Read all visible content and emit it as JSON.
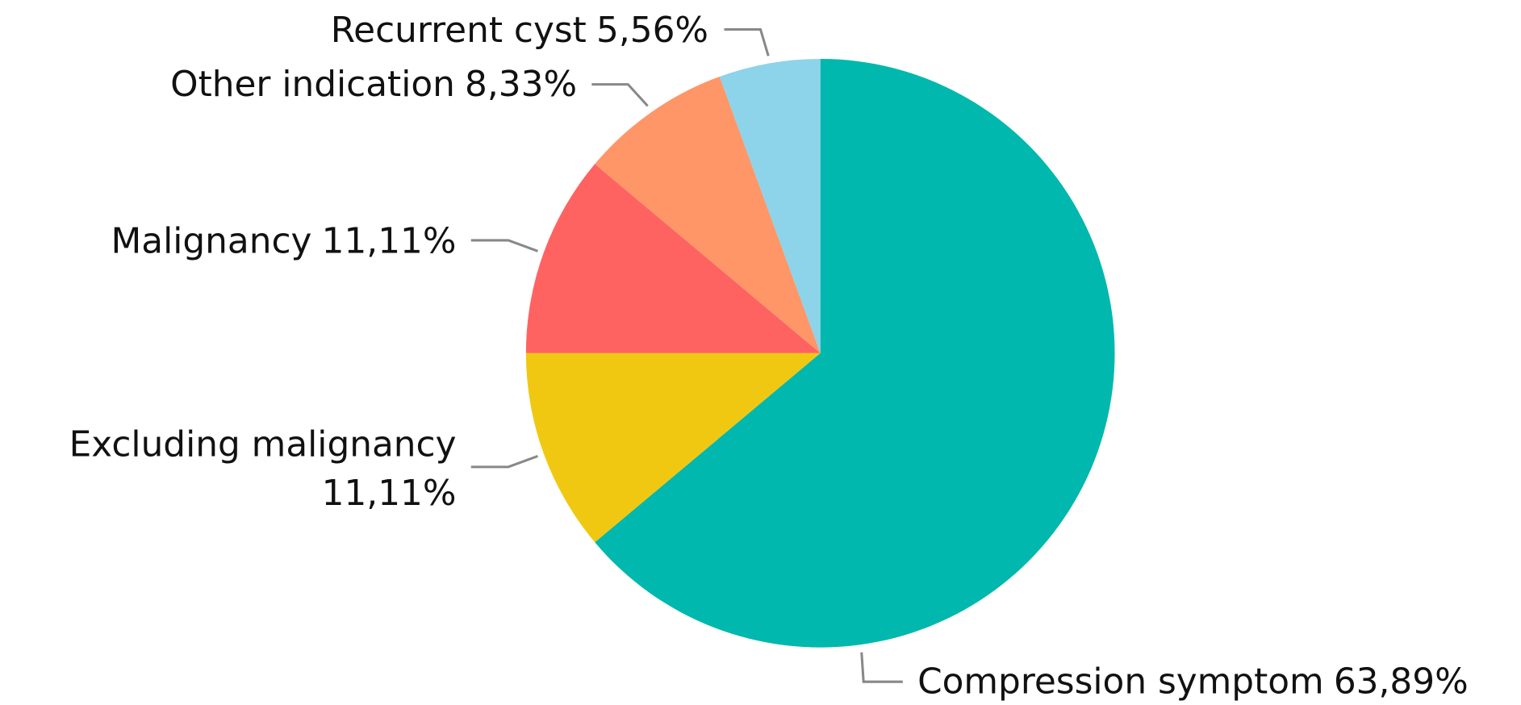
{
  "chart_data": {
    "type": "pie",
    "categories": [
      "Compression symptom",
      "Excluding malignancy",
      "Malignancy",
      "Other indication",
      "Recurrent cyst"
    ],
    "values": [
      63.89,
      11.11,
      11.11,
      8.33,
      5.56
    ],
    "value_labels": [
      "63,89%",
      "11,11%",
      "11,11%",
      "8,33%",
      "5,56%"
    ],
    "colors": [
      "#00b8ad",
      "#f1c811",
      "#ff6361",
      "#ff9668",
      "#8dd3ea"
    ]
  }
}
